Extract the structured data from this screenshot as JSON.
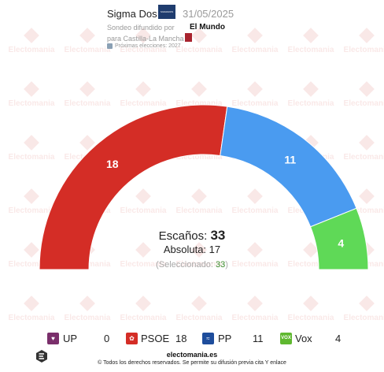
{
  "header": {
    "pollster": "Sigma Dos",
    "pollster_logo_text": "SIGMADOS",
    "date": "31/05/2025",
    "diffused_by": "Sondeo difundido por",
    "media": "El Mundo",
    "region": "para Castilla-La Mancha",
    "next_election": "Próximas elecciones: 2027"
  },
  "watermark_text": "Electomania",
  "summary": {
    "seats_label": "Escaños:",
    "seats_total": "33",
    "majority_label": "Absoluta:",
    "majority_value": "17",
    "selected_open": "(Seleccionado:",
    "selected_value": "33",
    "selected_close": ")"
  },
  "chart_data": {
    "type": "pie",
    "subtype": "hemicycle",
    "total": 33,
    "majority": 17,
    "series": [
      {
        "name": "UP",
        "values": [
          0
        ],
        "color": "#7a2f6b"
      },
      {
        "name": "PSOE",
        "values": [
          18
        ],
        "color": "#d42d26"
      },
      {
        "name": "PP",
        "values": [
          11
        ],
        "color": "#4a9bf0"
      },
      {
        "name": "Vox",
        "values": [
          4
        ],
        "color": "#5fd957"
      }
    ],
    "arc_labels": [
      "18",
      "11",
      "4"
    ]
  },
  "legend": [
    {
      "name": "UP",
      "seats": "0",
      "color": "#7a2f6b",
      "icon": "heart-icon"
    },
    {
      "name": "PSOE",
      "seats": "18",
      "color": "#d42d26",
      "icon": "rose-icon"
    },
    {
      "name": "PP",
      "seats": "11",
      "color": "#1e4d9c",
      "icon": "gull-icon"
    },
    {
      "name": "Vox",
      "seats": "4",
      "color": "#5fb830",
      "icon": "vox-icon",
      "icon_text": "VOX"
    }
  ],
  "footer": {
    "site": "electomania.es",
    "copyright": "© Todos los derechos reservados. Se permite su difusión previa cita Y enlace"
  }
}
